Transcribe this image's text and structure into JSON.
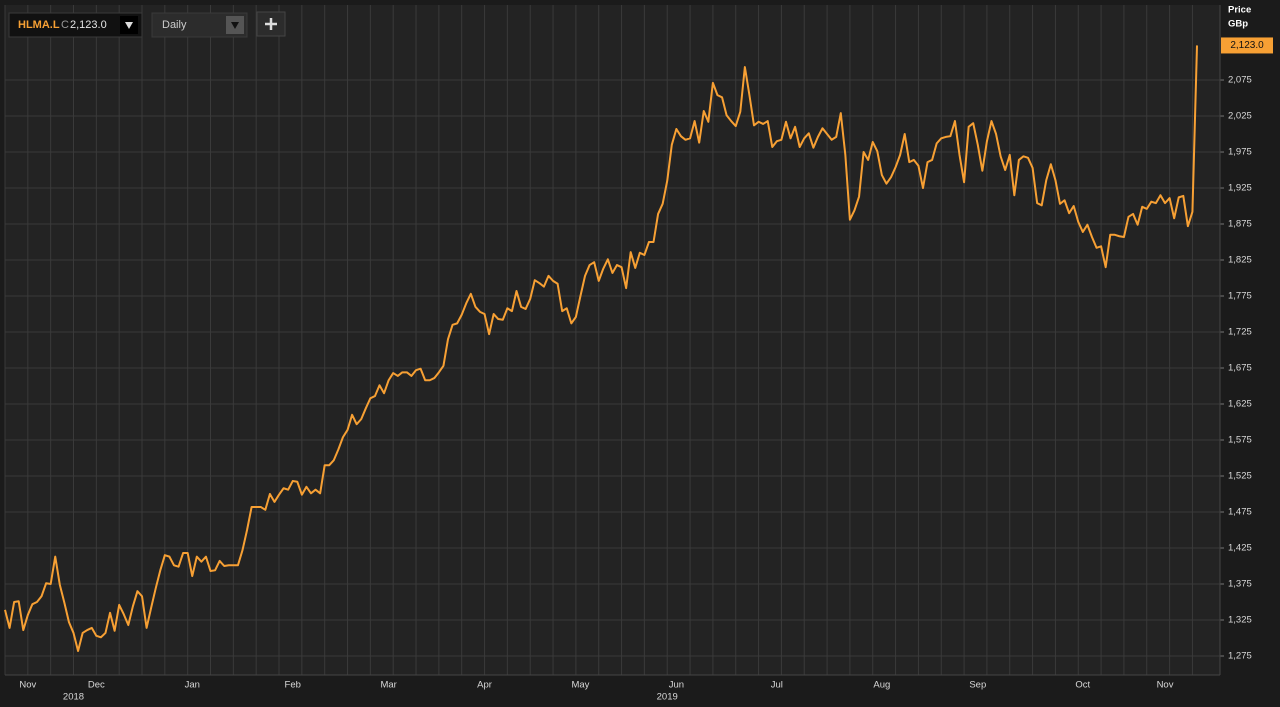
{
  "toolbar": {
    "ticker": "HLMA.L",
    "close_prefix": "C",
    "close_label": "2,123.0",
    "interval": "Daily"
  },
  "chart_data": {
    "type": "line",
    "axis_title": "Price",
    "axis_unit": "GBp",
    "color": "#f7a034",
    "grid": true,
    "ylim": [
      1248.6,
      2179.2
    ],
    "yticks": [
      {
        "value": 1275,
        "label": "1,275"
      },
      {
        "value": 1325,
        "label": "1,325"
      },
      {
        "value": 1375,
        "label": "1,375"
      },
      {
        "value": 1425,
        "label": "1,425"
      },
      {
        "value": 1475,
        "label": "1,475"
      },
      {
        "value": 1525,
        "label": "1,525"
      },
      {
        "value": 1575,
        "label": "1,575"
      },
      {
        "value": 1625,
        "label": "1,625"
      },
      {
        "value": 1675,
        "label": "1,675"
      },
      {
        "value": 1725,
        "label": "1,725"
      },
      {
        "value": 1775,
        "label": "1,775"
      },
      {
        "value": 1825,
        "label": "1,825"
      },
      {
        "value": 1875,
        "label": "1,875"
      },
      {
        "value": 1925,
        "label": "1,925"
      },
      {
        "value": 1975,
        "label": "1,975"
      },
      {
        "value": 2025,
        "label": "2,025"
      },
      {
        "value": 2075,
        "label": "2,075"
      }
    ],
    "last_label": "2,123.0",
    "categories": [
      null,
      null,
      null,
      null,
      null,
      "Nov",
      null,
      null,
      null,
      null,
      null,
      null,
      null,
      null,
      null,
      null,
      null,
      null,
      null,
      null,
      "Dec",
      null,
      null,
      null,
      null,
      null,
      null,
      null,
      null,
      null,
      null,
      null,
      null,
      null,
      null,
      null,
      null,
      null,
      null,
      null,
      null,
      "Jan",
      null,
      null,
      null,
      null,
      null,
      null,
      null,
      null,
      null,
      null,
      null,
      null,
      null,
      null,
      null,
      null,
      null,
      null,
      null,
      null,
      null,
      "Feb",
      null,
      null,
      null,
      null,
      null,
      null,
      null,
      null,
      null,
      null,
      null,
      null,
      null,
      null,
      null,
      null,
      null,
      null,
      null,
      null,
      "Mar",
      null,
      null,
      null,
      null,
      null,
      null,
      null,
      null,
      null,
      null,
      null,
      null,
      null,
      null,
      null,
      null,
      null,
      null,
      null,
      null,
      "Apr",
      null,
      null,
      null,
      null,
      null,
      null,
      null,
      null,
      null,
      null,
      null,
      null,
      null,
      null,
      null,
      null,
      null,
      null,
      null,
      null,
      "May",
      null,
      null,
      null,
      null,
      null,
      null,
      null,
      null,
      null,
      null,
      null,
      null,
      null,
      null,
      null,
      null,
      null,
      null,
      null,
      null,
      "Jun",
      null,
      null,
      null,
      null,
      null,
      null,
      null,
      null,
      null,
      null,
      null,
      null,
      null,
      null,
      null,
      null,
      null,
      null,
      null,
      null,
      null,
      "Jul",
      null,
      null,
      null,
      null,
      null,
      null,
      null,
      null,
      null,
      null,
      null,
      null,
      null,
      null,
      null,
      null,
      null,
      null,
      null,
      null,
      null,
      null,
      "Aug",
      null,
      null,
      null,
      null,
      null,
      null,
      null,
      null,
      null,
      null,
      null,
      null,
      null,
      null,
      null,
      null,
      null,
      null,
      null,
      null,
      "Sep",
      null,
      null,
      null,
      null,
      null,
      null,
      null,
      null,
      null,
      null,
      null,
      null,
      null,
      null,
      null,
      null,
      null,
      null,
      null,
      null,
      null,
      null,
      "Oct",
      null,
      null,
      null,
      null,
      null,
      null,
      null,
      null,
      null,
      null,
      null,
      null,
      null,
      null,
      null,
      null,
      null,
      "Nov",
      null,
      null,
      null,
      null,
      null,
      null,
      null
    ],
    "years": [
      null,
      null,
      null,
      null,
      null,
      null,
      null,
      null,
      null,
      null,
      null,
      null,
      null,
      null,
      null,
      "2018",
      null,
      null,
      null,
      null,
      null,
      null,
      null,
      null,
      null,
      null,
      null,
      null,
      null,
      null,
      null,
      null,
      null,
      null,
      null,
      null,
      null,
      null,
      null,
      null,
      null,
      null,
      null,
      null,
      null,
      null,
      null,
      null,
      null,
      null,
      null,
      null,
      null,
      null,
      null,
      null,
      null,
      null,
      null,
      null,
      null,
      null,
      null,
      null,
      null,
      null,
      null,
      null,
      null,
      null,
      null,
      null,
      null,
      null,
      null,
      null,
      null,
      null,
      null,
      null,
      null,
      null,
      null,
      null,
      null,
      null,
      null,
      null,
      null,
      null,
      null,
      null,
      null,
      null,
      null,
      null,
      null,
      null,
      null,
      null,
      null,
      null,
      null,
      null,
      null,
      null,
      null,
      null,
      null,
      null,
      null,
      null,
      null,
      null,
      null,
      null,
      null,
      null,
      null,
      null,
      null,
      null,
      null,
      null,
      null,
      null,
      null,
      null,
      null,
      null,
      null,
      null,
      null,
      null,
      null,
      null,
      null,
      null,
      null,
      null,
      null,
      null,
      null,
      null,
      null,
      "2019",
      null,
      null,
      null,
      null,
      null,
      null,
      null,
      null,
      null,
      null,
      null,
      null,
      null,
      null,
      null,
      null,
      null,
      null,
      null,
      null,
      null,
      null,
      null,
      null,
      null,
      null,
      null,
      null,
      null,
      null,
      null,
      null,
      null,
      null,
      null,
      null,
      null,
      null,
      null,
      null,
      null,
      null,
      null,
      null,
      null,
      null,
      null,
      null,
      null,
      null,
      null,
      null,
      null,
      null,
      null,
      null,
      null,
      null,
      null,
      null,
      null,
      null,
      null,
      null,
      null,
      null,
      null,
      null,
      null,
      null,
      null,
      null,
      null,
      null,
      null,
      null,
      null,
      null,
      null,
      null,
      null,
      null,
      null,
      null,
      null,
      null,
      null,
      null,
      null,
      null,
      null,
      null,
      null,
      null,
      null,
      null,
      null,
      null,
      null,
      null,
      null,
      null,
      null,
      null,
      null,
      null,
      null,
      null,
      null,
      null,
      null,
      null,
      null,
      null,
      null,
      null
    ],
    "values": [
      1339,
      1314,
      1350,
      1351,
      1311,
      1332,
      1347,
      1350,
      1358,
      1376,
      1375,
      1413,
      1374,
      1349,
      1322,
      1307,
      1282,
      1307,
      1311,
      1314,
      1303,
      1301,
      1307,
      1335,
      1310,
      1346,
      1333,
      1318,
      1344,
      1365,
      1358,
      1314,
      1342,
      1369,
      1394,
      1415,
      1413,
      1401,
      1399,
      1418,
      1418,
      1386,
      1413,
      1406,
      1413,
      1393,
      1394,
      1407,
      1400,
      1401,
      1401,
      1401,
      1422,
      1450,
      1482,
      1482,
      1482,
      1478,
      1500,
      1489,
      1499,
      1508,
      1506,
      1518,
      1517,
      1499,
      1510,
      1501,
      1506,
      1501,
      1540,
      1540,
      1547,
      1562,
      1579,
      1589,
      1610,
      1597,
      1604,
      1619,
      1633,
      1636,
      1651,
      1640,
      1658,
      1668,
      1664,
      1669,
      1669,
      1664,
      1672,
      1674,
      1658,
      1658,
      1661,
      1669,
      1678,
      1715,
      1735,
      1737,
      1749,
      1765,
      1778,
      1760,
      1753,
      1750,
      1722,
      1750,
      1743,
      1742,
      1758,
      1754,
      1782,
      1760,
      1757,
      1771,
      1797,
      1793,
      1788,
      1803,
      1796,
      1792,
      1754,
      1758,
      1737,
      1746,
      1775,
      1803,
      1818,
      1822,
      1796,
      1813,
      1826,
      1807,
      1818,
      1815,
      1786,
      1836,
      1814,
      1835,
      1832,
      1850,
      1850,
      1889,
      1903,
      1935,
      1985,
      2007,
      1997,
      1992,
      1994,
      2018,
      1988,
      2032,
      2017,
      2071,
      2054,
      2051,
      2026,
      2018,
      2011,
      2031,
      2093,
      2054,
      2012,
      2017,
      2014,
      2018,
      1982,
      1990,
      1992,
      2017,
      1994,
      2010,
      1982,
      1994,
      2001,
      1981,
      1996,
      2008,
      2000,
      1992,
      1996,
      2029,
      1971,
      1881,
      1894,
      1913,
      1975,
      1964,
      1989,
      1976,
      1943,
      1931,
      1940,
      1954,
      1971,
      2000,
      1961,
      1964,
      1956,
      1925,
      1961,
      1964,
      1987,
      1994,
      1996,
      1997,
      2018,
      1971,
      1933,
      2010,
      2015,
      1985,
      1949,
      1990,
      2018,
      2000,
      1969,
      1950,
      1971,
      1915,
      1964,
      1969,
      1967,
      1953,
      1904,
      1901,
      1936,
      1958,
      1936,
      1903,
      1908,
      1890,
      1900,
      1878,
      1864,
      1874,
      1857,
      1842,
      1844,
      1815,
      1860,
      1860,
      1858,
      1857,
      1885,
      1889,
      1874,
      1899,
      1896,
      1906,
      1904,
      1915,
      1904,
      1911,
      1883,
      1912,
      1914,
      1872,
      1892,
      2123
    ]
  }
}
